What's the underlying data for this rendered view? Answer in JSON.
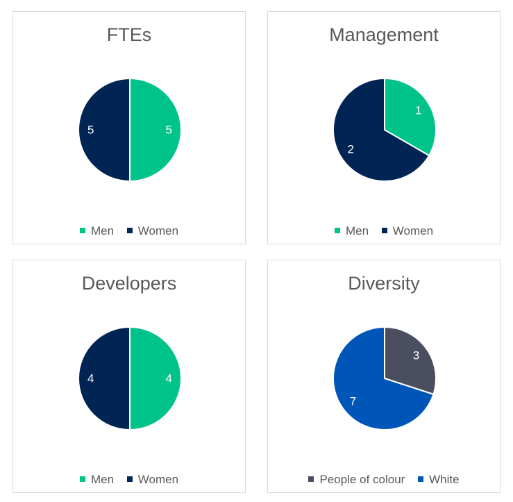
{
  "chart_data": [
    {
      "type": "pie",
      "title": "FTEs",
      "categories": [
        "Men",
        "Women"
      ],
      "values": [
        5,
        5
      ],
      "colors": [
        "#00c389",
        "#002554"
      ],
      "legend": "bottom"
    },
    {
      "type": "pie",
      "title": "Management",
      "categories": [
        "Men",
        "Women"
      ],
      "values": [
        1,
        2
      ],
      "colors": [
        "#00c389",
        "#002554"
      ],
      "legend": "bottom"
    },
    {
      "type": "pie",
      "title": "Developers",
      "categories": [
        "Men",
        "Women"
      ],
      "values": [
        4,
        4
      ],
      "colors": [
        "#00c389",
        "#002554"
      ],
      "legend": "bottom"
    },
    {
      "type": "pie",
      "title": "Diversity",
      "categories": [
        "People of colour",
        "White"
      ],
      "values": [
        3,
        7
      ],
      "colors": [
        "#4a4e5f",
        "#0055b8"
      ],
      "legend": "bottom"
    }
  ]
}
